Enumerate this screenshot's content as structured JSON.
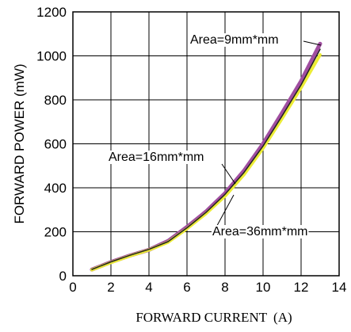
{
  "chart_data": {
    "type": "line",
    "title": "",
    "xlabel": "FORWARD CURRENT",
    "xlabel_unit": "(A)",
    "ylabel": "FORWARD POWER (mW)",
    "xlim": [
      0,
      14
    ],
    "ylim": [
      0,
      1200
    ],
    "xticks": [
      0,
      2,
      4,
      6,
      8,
      10,
      12,
      14
    ],
    "yticks": [
      0,
      200,
      400,
      600,
      800,
      1000,
      1200
    ],
    "grid": true,
    "series": [
      {
        "name": "Area=9mm*mm",
        "color": "#a04ea0",
        "x": [
          1,
          2,
          3,
          4,
          5,
          6,
          7,
          8,
          9,
          10,
          11,
          12,
          13
        ],
        "y": [
          28,
          62,
          92,
          118,
          158,
          222,
          292,
          375,
          478,
          600,
          740,
          885,
          1055
        ]
      },
      {
        "name": "Area=16mm*mm",
        "color": "#222222",
        "x": [
          1,
          2,
          3,
          4,
          5,
          6,
          7,
          8,
          9,
          10,
          11,
          12,
          13
        ],
        "y": [
          29,
          63,
          93,
          120,
          155,
          218,
          288,
          370,
          470,
          590,
          727,
          868,
          1030
        ]
      },
      {
        "name": "Area=36mm*mm",
        "color": "#ecec36",
        "x": [
          1,
          2,
          3,
          4,
          5,
          6,
          7,
          8,
          9,
          10,
          11,
          12,
          13
        ],
        "y": [
          27,
          60,
          90,
          117,
          152,
          214,
          283,
          362,
          460,
          580,
          715,
          855,
          1005
        ]
      }
    ],
    "annotations": [
      {
        "text": "Area=9mm*mm",
        "series": 0
      },
      {
        "text": "Area=16mm*mm",
        "series": 1
      },
      {
        "text": "Area=36mm*mm",
        "series": 2
      }
    ]
  }
}
